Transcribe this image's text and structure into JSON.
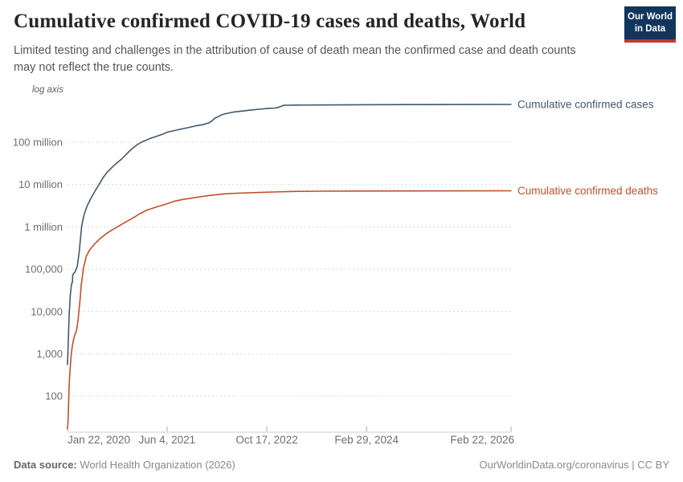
{
  "header": {
    "title": "Cumulative confirmed COVID-19 cases and deaths, World",
    "subtitle": "Limited testing and challenges in the attribution of cause of death mean the confirmed case and death counts may not reflect the true counts."
  },
  "logo": {
    "line1": "Our World",
    "line2": "in Data",
    "bg_color": "#12355B",
    "accent_color": "#C0392B"
  },
  "chart_data": {
    "type": "line",
    "log_axis_label": "log axis",
    "grid": true,
    "grid_color": "#d9d9d9",
    "axis_text_color": "#6e6e6e",
    "x_axis": {
      "unit": "days since Jan 22, 2020",
      "range_days": [
        0,
        2223
      ],
      "ticks": [
        {
          "day": 0,
          "label": "Jan 22, 2020",
          "anchor": "start"
        },
        {
          "day": 499,
          "label": "Jun 4, 2021",
          "anchor": "middle"
        },
        {
          "day": 999,
          "label": "Oct 17, 2022",
          "anchor": "middle"
        },
        {
          "day": 1499,
          "label": "Feb 29, 2024",
          "anchor": "middle"
        },
        {
          "day": 2223,
          "label": "Feb 22, 2026",
          "anchor": "end"
        }
      ]
    },
    "y_axis": {
      "scale": "log",
      "range": [
        30,
        1000000000
      ],
      "ticks": [
        {
          "value": 100,
          "label": "100"
        },
        {
          "value": 1000,
          "label": "1,000"
        },
        {
          "value": 10000,
          "label": "10,000"
        },
        {
          "value": 100000,
          "label": "100,000"
        },
        {
          "value": 1000000,
          "label": "1 million"
        },
        {
          "value": 10000000,
          "label": "10 million"
        },
        {
          "value": 100000000,
          "label": "100 million"
        }
      ]
    },
    "legend_position": "right-of-line-end",
    "series": [
      {
        "name": "cases",
        "label": "Cumulative confirmed cases",
        "color": "#44576C",
        "points": [
          [
            0,
            557
          ],
          [
            3,
            1320
          ],
          [
            8,
            7818
          ],
          [
            14,
            24554
          ],
          [
            20,
            45171
          ],
          [
            23,
            46997
          ],
          [
            25,
            51857
          ],
          [
            26,
            71429
          ],
          [
            30,
            78630
          ],
          [
            38,
            85403
          ],
          [
            49,
            118319
          ],
          [
            59,
            266073
          ],
          [
            66,
            593291
          ],
          [
            71,
            1013000
          ],
          [
            77,
            1440000
          ],
          [
            84,
            2000000
          ],
          [
            98,
            3090000
          ],
          [
            120,
            5000000
          ],
          [
            140,
            7270000
          ],
          [
            158,
            10000000
          ],
          [
            180,
            14970000
          ],
          [
            201,
            20000000
          ],
          [
            239,
            30000000
          ],
          [
            271,
            40000000
          ],
          [
            291,
            50000000
          ],
          [
            308,
            60000000
          ],
          [
            323,
            70000000
          ],
          [
            339,
            80000000
          ],
          [
            354,
            90000000
          ],
          [
            370,
            100000000
          ],
          [
            410,
            120000000
          ],
          [
            451,
            140000000
          ],
          [
            480,
            157000000
          ],
          [
            499,
            172000000
          ],
          [
            530,
            185000000
          ],
          [
            560,
            200000000
          ],
          [
            600,
            219000000
          ],
          [
            648,
            246000000
          ],
          [
            680,
            260000000
          ],
          [
            709,
            287000000
          ],
          [
            724,
            320000000
          ],
          [
            740,
            373000000
          ],
          [
            755,
            400000000
          ],
          [
            768,
            434000000
          ],
          [
            790,
            470000000
          ],
          [
            829,
            513000000
          ],
          [
            870,
            540000000
          ],
          [
            921,
            577000000
          ],
          [
            960,
            600000000
          ],
          [
            999,
            623000000
          ],
          [
            1040,
            640000000
          ],
          [
            1055,
            660000000
          ],
          [
            1085,
            745000000
          ],
          [
            1150,
            752000000
          ],
          [
            1255,
            757000000
          ],
          [
            1440,
            765000000
          ],
          [
            1550,
            770000000
          ],
          [
            1800,
            774000000
          ],
          [
            2000,
            776000000
          ],
          [
            2223,
            778000000
          ]
        ]
      },
      {
        "name": "deaths",
        "label": "Cumulative confirmed deaths",
        "color": "#BC512B",
        "points": [
          [
            0,
            17
          ],
          [
            3,
            26
          ],
          [
            8,
            170
          ],
          [
            10,
            259
          ],
          [
            14,
            494
          ],
          [
            19,
            1016
          ],
          [
            24,
            1523
          ],
          [
            30,
            2127
          ],
          [
            37,
            2867
          ],
          [
            44,
            3348
          ],
          [
            48,
            4296
          ],
          [
            53,
            6440
          ],
          [
            58,
            11299
          ],
          [
            63,
            18439
          ],
          [
            69,
            42107
          ],
          [
            74,
            64606
          ],
          [
            79,
            102000
          ],
          [
            87,
            145000
          ],
          [
            94,
            200000
          ],
          [
            110,
            280000
          ],
          [
            137,
            400000
          ],
          [
            160,
            510000
          ],
          [
            190,
            666000
          ],
          [
            220,
            830000
          ],
          [
            250,
            1000000
          ],
          [
            285,
            1250000
          ],
          [
            316,
            1500000
          ],
          [
            340,
            1750000
          ],
          [
            359,
            2000000
          ],
          [
            400,
            2500000
          ],
          [
            451,
            3000000
          ],
          [
            490,
            3400000
          ],
          [
            532,
            4000000
          ],
          [
            580,
            4450000
          ],
          [
            649,
            5000000
          ],
          [
            700,
            5430000
          ],
          [
            780,
            6000000
          ],
          [
            850,
            6250000
          ],
          [
            946,
            6450000
          ],
          [
            1030,
            6650000
          ],
          [
            1134,
            6870000
          ],
          [
            1250,
            6950000
          ],
          [
            1440,
            7010000
          ],
          [
            1700,
            7060000
          ],
          [
            2000,
            7090000
          ],
          [
            2223,
            7100000
          ]
        ]
      }
    ]
  },
  "footer": {
    "source_label": "Data source:",
    "source_text": " World Health Organization (2026)",
    "attribution": "OurWorldinData.org/coronavirus | CC BY"
  }
}
